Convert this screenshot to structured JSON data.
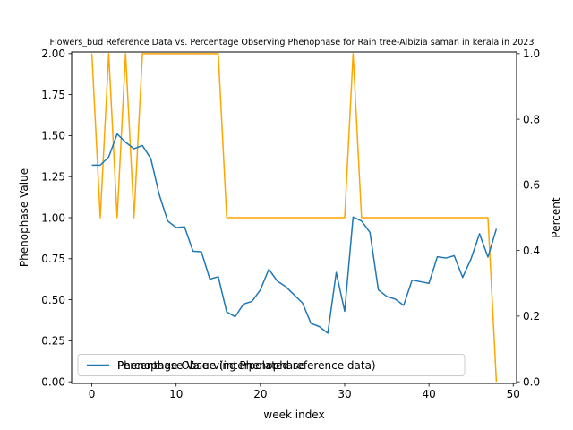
{
  "chart_data": {
    "type": "line",
    "title": "Flowers_bud Reference Data vs. Percentage Observing Phenophase for Rain tree-Albizia saman in kerala in 2023",
    "xlabel": "week index",
    "ylabel_left": "Phenophase Value",
    "ylabel_right": "Percent",
    "xlim": [
      -2.4,
      50.4
    ],
    "ylim_left": [
      -0.01,
      2.01
    ],
    "ylim_right": [
      -0.005,
      1.005
    ],
    "x_ticks": [
      0,
      10,
      20,
      30,
      40,
      50
    ],
    "y_ticks_left": [
      "0.00",
      "0.25",
      "0.50",
      "0.75",
      "1.00",
      "1.25",
      "1.50",
      "1.75",
      "2.00"
    ],
    "y_ticks_right": [
      "0.0",
      "0.2",
      "0.4",
      "0.6",
      "0.8",
      "1.0"
    ],
    "legend_loc": "lower left",
    "series": [
      {
        "name": "Percentage Observing Phenophase",
        "axis": "right",
        "color": "#1f77b4",
        "x": [
          0,
          1,
          2,
          3,
          4,
          5,
          6,
          7,
          8,
          9,
          10,
          11,
          12,
          13,
          14,
          15,
          16,
          17,
          18,
          19,
          20,
          21,
          22,
          23,
          24,
          25,
          26,
          27,
          28,
          29,
          30,
          31,
          32,
          33,
          34,
          35,
          36,
          37,
          38,
          39,
          40,
          41,
          42,
          43,
          44,
          45,
          46,
          47,
          48
        ],
        "y": [
          0.66,
          0.66,
          0.685,
          0.755,
          0.73,
          0.71,
          0.72,
          0.68,
          0.57,
          0.49,
          0.47,
          0.472,
          0.398,
          0.396,
          0.313,
          0.32,
          0.213,
          0.198,
          0.237,
          0.245,
          0.28,
          0.343,
          0.307,
          0.29,
          0.265,
          0.24,
          0.178,
          0.168,
          0.148,
          0.333,
          0.215,
          0.502,
          0.49,
          0.455,
          0.28,
          0.26,
          0.252,
          0.233,
          0.31,
          0.305,
          0.3,
          0.381,
          0.377,
          0.384,
          0.318,
          0.375,
          0.451,
          0.38,
          0.466
        ]
      },
      {
        "name": "Phenophase Value (interpolated reference data)",
        "axis": "left",
        "color": "#ffa500",
        "x": [
          0,
          1,
          2,
          3,
          4,
          5,
          6,
          7,
          8,
          9,
          10,
          11,
          12,
          13,
          14,
          15,
          16,
          17,
          18,
          19,
          20,
          21,
          22,
          23,
          24,
          25,
          26,
          27,
          28,
          29,
          30,
          31,
          32,
          33,
          34,
          35,
          36,
          37,
          38,
          39,
          40,
          41,
          42,
          43,
          44,
          45,
          46,
          47,
          48
        ],
        "y": [
          2,
          1,
          2,
          1,
          2,
          1,
          2,
          2,
          2,
          2,
          2,
          2,
          2,
          2,
          2,
          2,
          1,
          1,
          1,
          1,
          1,
          1,
          1,
          1,
          1,
          1,
          1,
          1,
          1,
          1,
          1,
          2,
          1,
          1,
          1,
          1,
          1,
          1,
          1,
          1,
          1,
          1,
          1,
          1,
          1,
          1,
          1,
          1,
          0
        ]
      }
    ]
  },
  "legend": {
    "blue_label": "Percentage Observing Phenophase",
    "orange_label": "Phenophase Value (interpolated reference data)"
  }
}
